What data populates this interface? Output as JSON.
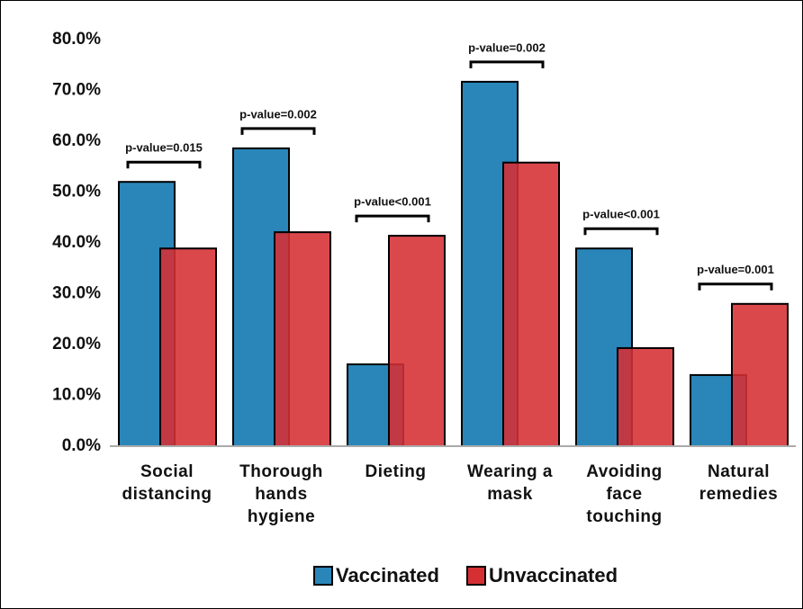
{
  "chart_data": {
    "type": "bar",
    "categories": [
      "Social distancing",
      "Thorough hands hygiene",
      "Dieting",
      "Wearing a mask",
      "Avoiding face touching",
      "Natural remedies"
    ],
    "series": [
      {
        "name": "Vaccinated",
        "color": "#2a86b9",
        "values": [
          52.0,
          58.6,
          16.1,
          71.7,
          38.9,
          14.0
        ]
      },
      {
        "name": "Unvaccinated",
        "color": "#d62f33",
        "values": [
          38.9,
          42.1,
          41.4,
          55.8,
          19.3,
          28.0
        ]
      }
    ],
    "annotations": [
      "p-value=0.015",
      "p-value=0.002",
      "p-value<0.001",
      "p-value=0.002",
      "p-value<0.001",
      "p-value=0.001"
    ],
    "ylim": [
      0,
      80
    ],
    "yticks": [
      {
        "value": 0,
        "label": "0.0%"
      },
      {
        "value": 10,
        "label": "10.0%"
      },
      {
        "value": 20,
        "label": "20.0%"
      },
      {
        "value": 30,
        "label": "30.0%"
      },
      {
        "value": 40,
        "label": "40.0%"
      },
      {
        "value": 50,
        "label": "50.0%"
      },
      {
        "value": 60,
        "label": "60.0%"
      },
      {
        "value": 70,
        "label": "70.0%"
      },
      {
        "value": 80,
        "label": "80.0%"
      }
    ],
    "legend": "bottom"
  }
}
